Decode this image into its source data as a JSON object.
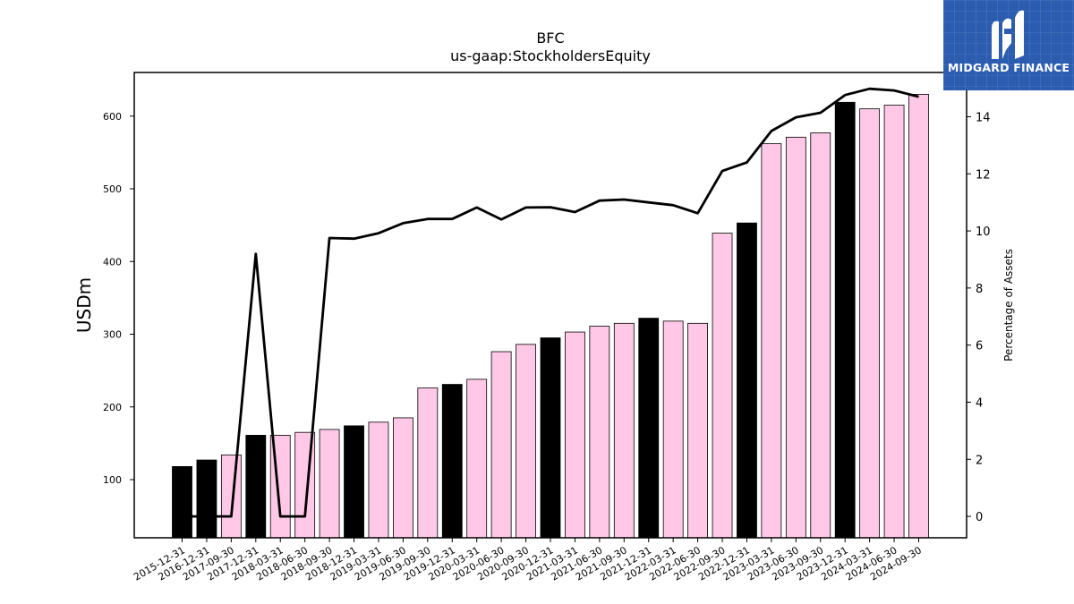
{
  "chart_data": {
    "type": "bar",
    "title": "BFC",
    "subtitle": "us-gaap:StockholdersEquity",
    "ylabel": "USDm",
    "y2label": "Percentage of Assets",
    "ylim": [
      20,
      660
    ],
    "y2lim": [
      -0.75,
      15.55
    ],
    "yticks": [
      100,
      200,
      300,
      400,
      500,
      600
    ],
    "y2ticks": [
      0,
      2,
      4,
      6,
      8,
      10,
      12,
      14
    ],
    "categories": [
      "2015-12-31",
      "2016-12-31",
      "2017-09-30",
      "2017-12-31",
      "2018-03-31",
      "2018-06-30",
      "2018-09-30",
      "2018-12-31",
      "2019-03-31",
      "2019-06-30",
      "2019-09-30",
      "2019-12-31",
      "2020-03-31",
      "2020-06-30",
      "2020-09-30",
      "2020-12-31",
      "2021-03-31",
      "2021-06-30",
      "2021-09-30",
      "2021-12-31",
      "2022-03-31",
      "2022-06-30",
      "2022-09-30",
      "2022-12-31",
      "2023-03-31",
      "2023-06-30",
      "2023-09-30",
      "2023-12-31",
      "2024-03-31",
      "2024-06-30",
      "2024-09-30"
    ],
    "series": [
      {
        "type": "bar",
        "values": [
          118,
          127,
          134,
          161,
          161,
          165,
          169,
          174,
          179,
          185,
          226,
          231,
          238,
          276,
          286,
          295,
          303,
          311,
          315,
          322,
          318,
          315,
          439,
          453,
          562,
          571,
          577,
          619,
          610,
          615,
          630
        ]
      },
      {
        "type": "line",
        "axis": "right",
        "values": [
          0.0,
          0.0,
          0.0,
          9.2,
          0.0,
          0.0,
          9.75,
          9.73,
          9.92,
          10.27,
          10.42,
          10.42,
          10.82,
          10.4,
          10.82,
          10.83,
          10.66,
          11.06,
          11.1,
          11.0,
          10.9,
          10.62,
          12.1,
          12.4,
          13.5,
          13.98,
          14.14,
          14.76,
          14.98,
          14.92,
          14.7
        ]
      }
    ],
    "bar_colors": {
      "annual": "#000000",
      "quarterly": "#ffc8e6",
      "edge": "#000000"
    },
    "line_color": "#000000",
    "grid": false
  },
  "logo": {
    "text": "MIDGARD FINANCE",
    "background": "#2b5cb0"
  }
}
